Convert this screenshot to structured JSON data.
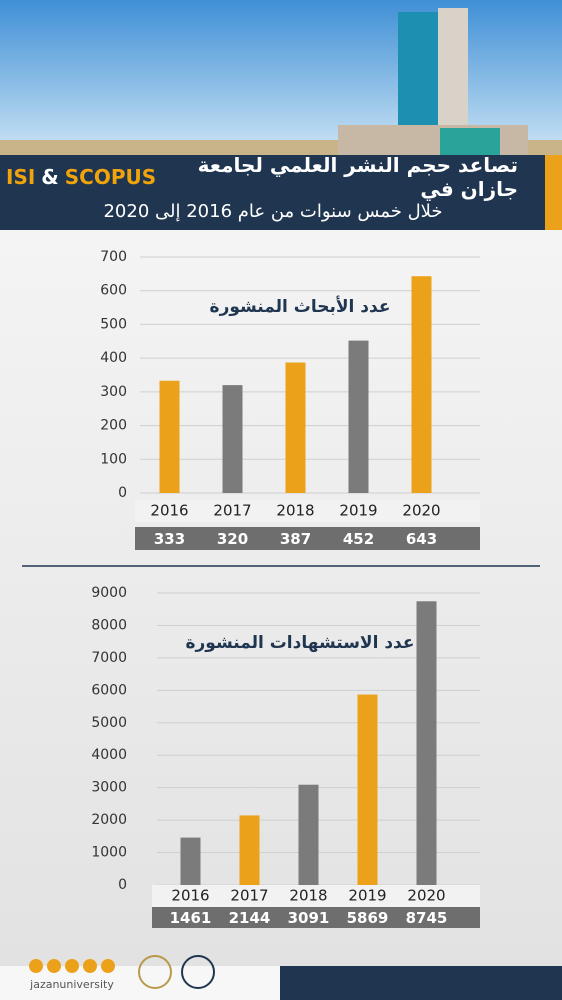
{
  "header": {
    "title": [
      "تصاعد حجم النشر العلمي لجامعة جازان في",
      "SCOPUS",
      "&",
      "ISI"
    ],
    "subtitle": "خلال خمس سنوات من عام 2016 إلى 2020"
  },
  "chart_data": [
    {
      "type": "bar",
      "title": "عدد الأبحاث المنشورة",
      "categories": [
        "2016",
        "2017",
        "2018",
        "2019",
        "2020"
      ],
      "values": [
        333,
        320,
        387,
        452,
        643
      ],
      "colors": [
        "#eba21a",
        "#7b7b7b",
        "#eba21a",
        "#7b7b7b",
        "#eba21a"
      ],
      "ylim": [
        0,
        700
      ],
      "yticks": [
        0,
        100,
        200,
        300,
        400,
        500,
        600,
        700
      ],
      "grid": true
    },
    {
      "type": "bar",
      "title": "عدد الاستشهادات المنشورة",
      "categories": [
        "2016",
        "2017",
        "2018",
        "2019",
        "2020"
      ],
      "values": [
        1461,
        2144,
        3091,
        5869,
        8745
      ],
      "colors": [
        "#7b7b7b",
        "#eba21a",
        "#7b7b7b",
        "#eba21a",
        "#7b7b7b"
      ],
      "ylim": [
        0,
        9000
      ],
      "yticks": [
        0,
        1000,
        2000,
        3000,
        4000,
        5000,
        6000,
        7000,
        8000,
        9000
      ],
      "grid": true
    }
  ],
  "footer": {
    "handle": "jazanuniversity"
  }
}
